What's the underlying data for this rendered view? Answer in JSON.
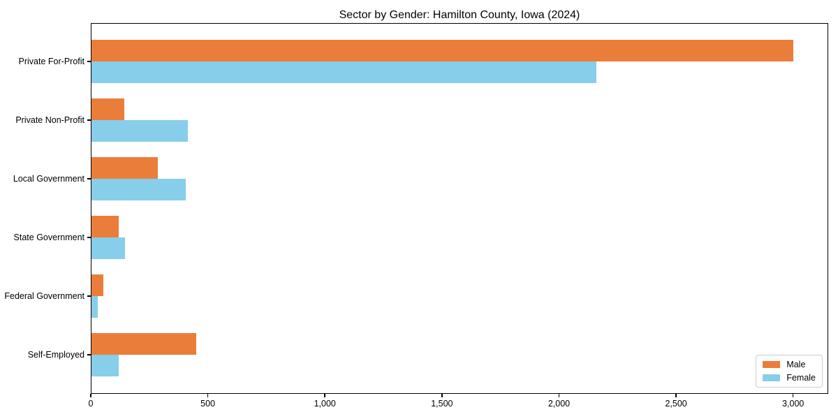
{
  "title": "Sector by Gender: Hamilton County, Iowa (2024)",
  "chart_data": {
    "type": "bar",
    "orientation": "horizontal",
    "title": "Sector by Gender: Hamilton County, Iowa (2024)",
    "categories": [
      "Private For-Profit",
      "Private Non-Profit",
      "Local Government",
      "State Government",
      "Federal Government",
      "Self-Employed"
    ],
    "series": [
      {
        "name": "Male",
        "color": "#eb7d3b",
        "values": [
          3000,
          143,
          287,
          120,
          53,
          451
        ]
      },
      {
        "name": "Female",
        "color": "#87ceeb",
        "values": [
          2160,
          414,
          407,
          146,
          30,
          118
        ]
      }
    ],
    "xlabel": "",
    "ylabel": "",
    "xlim": [
      0,
      3150
    ],
    "x_ticks": [
      0,
      500,
      1000,
      1500,
      2000,
      2500,
      3000
    ],
    "x_tick_labels": [
      "0",
      "500",
      "1,000",
      "1,500",
      "2,000",
      "2,500",
      "3,000"
    ],
    "grid": false,
    "legend": {
      "position": "lower right",
      "entries": [
        "Male",
        "Female"
      ]
    }
  }
}
